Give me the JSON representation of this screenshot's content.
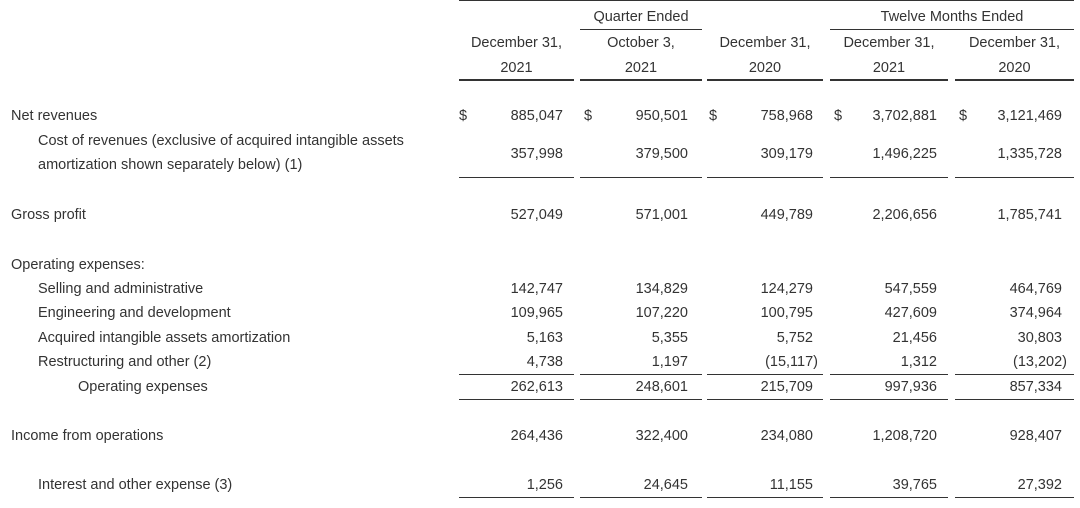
{
  "header": {
    "quarter_group": "Quarter Ended",
    "twelve_group": "Twelve Months Ended",
    "columns": [
      {
        "line1": "December 31,",
        "line2": "2021"
      },
      {
        "line1": "October 3,",
        "line2": "2021"
      },
      {
        "line1": "December 31,",
        "line2": "2020"
      },
      {
        "line1": "December 31,",
        "line2": "2021"
      },
      {
        "line1": "December 31,",
        "line2": "2020"
      }
    ]
  },
  "currency_symbol": "$",
  "rows": [
    {
      "label": "Net revenues",
      "values": [
        "885,047",
        "950,501",
        "758,968",
        "3,702,881",
        "3,121,469"
      ]
    },
    {
      "label_line1": "Cost of revenues (exclusive of acquired intangible assets",
      "label_line2": "amortization shown separately below) (1)",
      "values": [
        "357,998",
        "379,500",
        "309,179",
        "1,496,225",
        "1,335,728"
      ]
    },
    {
      "label": "Gross profit",
      "values": [
        "527,049",
        "571,001",
        "449,789",
        "2,206,656",
        "1,785,741"
      ]
    },
    {
      "label": "Operating expenses:"
    },
    {
      "label": "Selling and administrative",
      "values": [
        "142,747",
        "134,829",
        "124,279",
        "547,559",
        "464,769"
      ]
    },
    {
      "label": "Engineering and development",
      "values": [
        "109,965",
        "107,220",
        "100,795",
        "427,609",
        "374,964"
      ]
    },
    {
      "label": "Acquired intangible assets amortization",
      "values": [
        "5,163",
        "5,355",
        "5,752",
        "21,456",
        "30,803"
      ]
    },
    {
      "label": "Restructuring and other (2)",
      "values": [
        "4,738",
        "1,197",
        "(15,117)",
        "1,312",
        "(13,202)"
      ]
    },
    {
      "label": "Operating expenses",
      "values": [
        "262,613",
        "248,601",
        "215,709",
        "997,936",
        "857,334"
      ]
    },
    {
      "label": "Income from operations",
      "values": [
        "264,436",
        "322,400",
        "234,080",
        "1,208,720",
        "928,407"
      ]
    },
    {
      "label": "Interest and other expense (3)",
      "values": [
        "1,256",
        "24,645",
        "11,155",
        "39,765",
        "27,392"
      ]
    }
  ]
}
